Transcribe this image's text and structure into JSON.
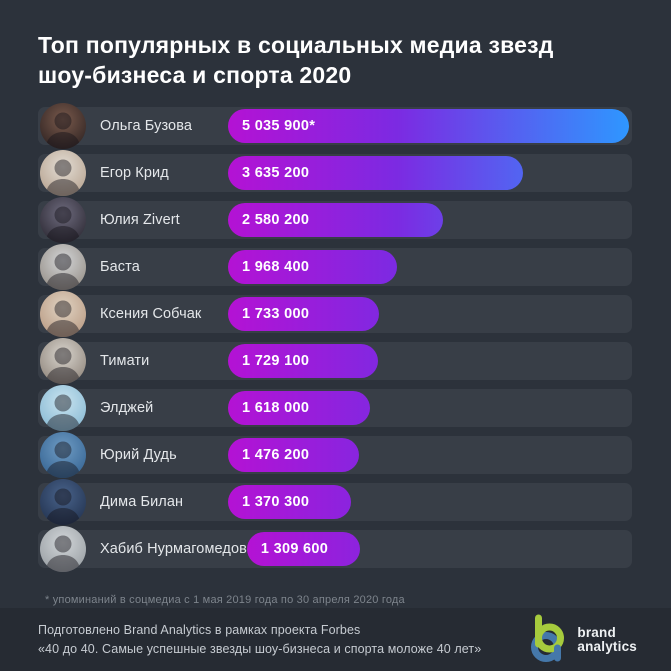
{
  "title": {
    "line1": "Топ популярных в социальных медиа звезд",
    "line2": "шоу-бизнеса и спорта 2020"
  },
  "chart_data": {
    "type": "bar",
    "orientation": "horizontal",
    "title": "Топ популярных в социальных медиа звезд шоу-бизнеса и спорта 2020",
    "categories": [
      "Ольга Бузова",
      "Егор Крид",
      "Юлия Zivert",
      "Баста",
      "Ксения Собчак",
      "Тимати",
      "Элджей",
      "Юрий Дудь",
      "Дима Билан",
      "Хабиб Нурмагомедов"
    ],
    "values": [
      5035900,
      3635200,
      2580200,
      1968400,
      1733000,
      1729100,
      1618000,
      1476200,
      1370300,
      1309600
    ],
    "value_labels": [
      "5 035 900*",
      "3 635 200",
      "2 580 200",
      "1 968 400",
      "1 733 000",
      "1 729 100",
      "1 618 000",
      "1 476 200",
      "1 370 300",
      "1 309 600"
    ],
    "xlim": [
      0,
      5035900
    ],
    "grid": false,
    "legend": false,
    "footnote": "* упоминаний в соцмедиа с 1 мая 2019 года  по 30 апреля 2020 года",
    "bar_gradient": [
      "#b412d4",
      "#7c2ae2",
      "#2e97ff"
    ]
  },
  "avatar_colors": [
    [
      "#7a5a4c",
      "#241b1c"
    ],
    [
      "#e3ddd4",
      "#b09a86"
    ],
    [
      "#6e6b7e",
      "#232029"
    ],
    [
      "#d3d5d7",
      "#8d857c"
    ],
    [
      "#e0d3c2",
      "#b3927a"
    ],
    [
      "#d8d4cd",
      "#857a70"
    ],
    [
      "#c9e4f0",
      "#7fb3cf"
    ],
    [
      "#6f9cc4",
      "#2d5c8c"
    ],
    [
      "#49638b",
      "#1d2c47"
    ],
    [
      "#d2d6d9",
      "#90969b"
    ]
  ],
  "footer": {
    "line1": "Подготовлено Brand Analytics в рамках проекта Forbes",
    "line2": "«40 до 40. Самые успешные звезды шоу-бизнеса и спорта моложе 40 лет»"
  },
  "logo": {
    "line1": "brand",
    "line2": "analytics",
    "green": "#a6cb3d",
    "blue": "#4578aa"
  },
  "colors": {
    "background": "#2c323b",
    "row_background": "#383e47",
    "footer_background": "#262b33",
    "title_text": "#ffffff",
    "name_text": "#e4e7ea",
    "footnote_text": "#7d848c",
    "footer_text": "#c6cbd1",
    "bar_value_text": "#ffffff"
  }
}
